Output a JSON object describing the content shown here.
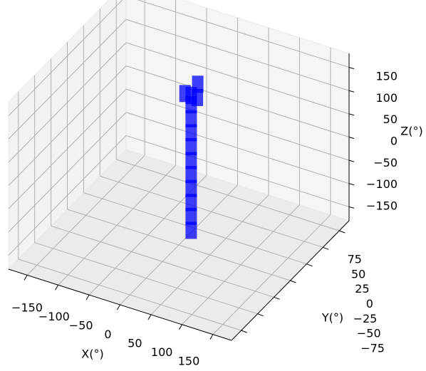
{
  "chart_data": {
    "type": "voxel3d",
    "x_label": "X(°)",
    "y_label": "Y(°)",
    "z_label": "Z(°)",
    "xlim": [
      -180,
      180
    ],
    "ylim": [
      -90,
      90
    ],
    "zlim": [
      -180,
      180
    ],
    "xticks": [
      {
        "value": -150,
        "label": "−150"
      },
      {
        "value": -100,
        "label": "−100"
      },
      {
        "value": -50,
        "label": "−50"
      },
      0,
      50,
      100,
      150
    ],
    "yticks": [
      {
        "value": -75,
        "label": "−75"
      },
      {
        "value": -50,
        "label": "−50"
      },
      {
        "value": -25,
        "label": "−25"
      },
      0,
      25,
      50,
      75
    ],
    "zticks": [
      {
        "value": -150,
        "label": "−150"
      },
      {
        "value": -100,
        "label": "−100"
      },
      {
        "value": -50,
        "label": "−50"
      },
      0,
      50,
      100,
      150
    ],
    "grid": true,
    "series": [
      {
        "color": "#0000ff",
        "x": [
          20,
          20,
          20,
          20,
          20,
          20,
          20,
          20,
          20,
          20,
          20,
          10,
          30,
          20
        ],
        "y": [
          0,
          0,
          0,
          0,
          0,
          0,
          0,
          0,
          0,
          0,
          0,
          0,
          0,
          10
        ],
        "z": [
          -140,
          -110,
          -80,
          -50,
          -20,
          10,
          40,
          70,
          100,
          130,
          150,
          150,
          150,
          160
        ]
      }
    ]
  }
}
